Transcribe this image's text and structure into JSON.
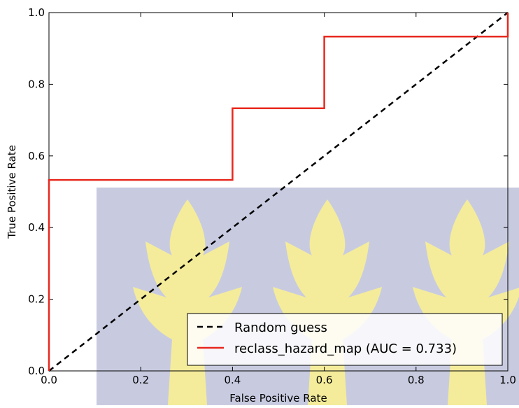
{
  "chart_data": {
    "type": "line",
    "title": "",
    "xlabel": "False Positive Rate",
    "ylabel": "True Positive Rate",
    "xlim": [
      0.0,
      1.0
    ],
    "ylim": [
      0.0,
      1.0
    ],
    "xticks": [
      "0.0",
      "0.2",
      "0.4",
      "0.6",
      "0.8",
      "1.0"
    ],
    "yticks": [
      "0.0",
      "0.2",
      "0.4",
      "0.6",
      "0.8",
      "1.0"
    ],
    "grid": false,
    "legend_position": "lower-right",
    "series": [
      {
        "name": "Random guess",
        "color": "#000000",
        "style": "dashed",
        "x": [
          0.0,
          1.0
        ],
        "y": [
          0.0,
          1.0
        ]
      },
      {
        "name": "reclass_hazard_map (AUC = 0.733)",
        "color": "#e8281e",
        "style": "solid",
        "x": [
          0.0,
          0.0,
          0.4,
          0.4,
          0.6,
          0.6,
          1.0,
          1.0
        ],
        "y": [
          0.0,
          0.533,
          0.533,
          0.733,
          0.733,
          0.933,
          0.933,
          1.0
        ]
      }
    ]
  },
  "watermark": {
    "description": "university emblem (stylized trees)",
    "background_color": "#c8cbe0",
    "tree_color": "#f4ec9a"
  }
}
